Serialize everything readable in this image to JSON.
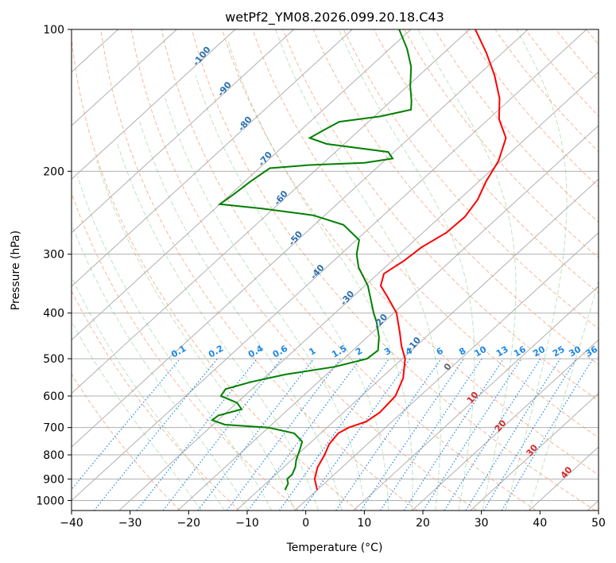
{
  "chart_data": {
    "type": "line",
    "subtype": "skew-T log-P diagram",
    "title": "wetPf2_YM08.2026.099.20.18.C43",
    "xlabel": "Temperature (°C)",
    "ylabel": "Pressure (hPa)",
    "xlim": [
      -40,
      50
    ],
    "ylim": [
      1050,
      100
    ],
    "x_ticks": [
      -40,
      -30,
      -20,
      -10,
      0,
      10,
      20,
      30,
      40,
      50
    ],
    "x_tick_labels": [
      "−40",
      "−30",
      "−20",
      "−10",
      "0",
      "10",
      "20",
      "30",
      "40",
      "50"
    ],
    "y_ticks": [
      100,
      200,
      300,
      400,
      500,
      600,
      700,
      800,
      900,
      1000
    ],
    "y_tick_labels": [
      "100",
      "200",
      "300",
      "400",
      "500",
      "600",
      "700",
      "800",
      "900",
      "1000"
    ],
    "grid": true,
    "series": [
      {
        "name": "Temperature",
        "color": "#ff0000",
        "points": [
          {
            "p": 950,
            "t": 0
          },
          {
            "p": 900,
            "t": -2.5
          },
          {
            "p": 850,
            "t": -4.2
          },
          {
            "p": 800,
            "t": -5.3
          },
          {
            "p": 760,
            "t": -6.5
          },
          {
            "p": 720,
            "t": -7.0
          },
          {
            "p": 700,
            "t": -6.3
          },
          {
            "p": 680,
            "t": -4.4
          },
          {
            "p": 650,
            "t": -3.8
          },
          {
            "p": 600,
            "t": -4.2
          },
          {
            "p": 550,
            "t": -6.2
          },
          {
            "p": 500,
            "t": -9.5
          },
          {
            "p": 470,
            "t": -12.5
          },
          {
            "p": 440,
            "t": -15.3
          },
          {
            "p": 400,
            "t": -19.5
          },
          {
            "p": 370,
            "t": -24.0
          },
          {
            "p": 350,
            "t": -27.3
          },
          {
            "p": 330,
            "t": -29.0
          },
          {
            "p": 310,
            "t": -28.0
          },
          {
            "p": 290,
            "t": -27.5
          },
          {
            "p": 270,
            "t": -26.0
          },
          {
            "p": 250,
            "t": -25.8
          },
          {
            "p": 230,
            "t": -26.8
          },
          {
            "p": 210,
            "t": -28.8
          },
          {
            "p": 190,
            "t": -30.5
          },
          {
            "p": 170,
            "t": -33.5
          },
          {
            "p": 155,
            "t": -38.2
          },
          {
            "p": 140,
            "t": -42.0
          },
          {
            "p": 125,
            "t": -47.2
          },
          {
            "p": 112,
            "t": -52.8
          },
          {
            "p": 100,
            "t": -59.0
          }
        ]
      },
      {
        "name": "Dewpoint",
        "color": "#008000",
        "points": [
          {
            "p": 950,
            "t": -5.5
          },
          {
            "p": 920,
            "t": -6.2
          },
          {
            "p": 900,
            "t": -7.2
          },
          {
            "p": 880,
            "t": -7.2
          },
          {
            "p": 850,
            "t": -8.0
          },
          {
            "p": 820,
            "t": -9.2
          },
          {
            "p": 780,
            "t": -10.5
          },
          {
            "p": 750,
            "t": -11.6
          },
          {
            "p": 720,
            "t": -14.5
          },
          {
            "p": 700,
            "t": -20.0
          },
          {
            "p": 690,
            "t": -28.0
          },
          {
            "p": 675,
            "t": -31.0
          },
          {
            "p": 660,
            "t": -30.8
          },
          {
            "p": 640,
            "t": -28.0
          },
          {
            "p": 620,
            "t": -30.0
          },
          {
            "p": 600,
            "t": -34.0
          },
          {
            "p": 580,
            "t": -34.5
          },
          {
            "p": 560,
            "t": -31.5
          },
          {
            "p": 540,
            "t": -27.0
          },
          {
            "p": 520,
            "t": -20.0
          },
          {
            "p": 500,
            "t": -16.0
          },
          {
            "p": 480,
            "t": -15.7
          },
          {
            "p": 450,
            "t": -18.0
          },
          {
            "p": 420,
            "t": -21.0
          },
          {
            "p": 400,
            "t": -23.4
          },
          {
            "p": 350,
            "t": -29.5
          },
          {
            "p": 320,
            "t": -34.5
          },
          {
            "p": 300,
            "t": -37.3
          },
          {
            "p": 280,
            "t": -39.5
          },
          {
            "p": 260,
            "t": -45.0
          },
          {
            "p": 248,
            "t": -52.0
          },
          {
            "p": 240,
            "t": -62.0
          },
          {
            "p": 235,
            "t": -70.0
          },
          {
            "p": 225,
            "t": -69.5
          },
          {
            "p": 210,
            "t": -69.0
          },
          {
            "p": 197,
            "t": -68.2
          },
          {
            "p": 194,
            "t": -62.0
          },
          {
            "p": 192,
            "t": -53.0
          },
          {
            "p": 188,
            "t": -49.0
          },
          {
            "p": 182,
            "t": -51.0
          },
          {
            "p": 175,
            "t": -63.0
          },
          {
            "p": 170,
            "t": -67.0
          },
          {
            "p": 163,
            "t": -66.0
          },
          {
            "p": 157,
            "t": -65.0
          },
          {
            "p": 153,
            "t": -59.0
          },
          {
            "p": 148,
            "t": -55.0
          },
          {
            "p": 142,
            "t": -56.5
          },
          {
            "p": 132,
            "t": -59.5
          },
          {
            "p": 120,
            "t": -63.0
          },
          {
            "p": 110,
            "t": -67.0
          },
          {
            "p": 100,
            "t": -72.0
          }
        ]
      }
    ],
    "background_lines": {
      "isotherms_step": 10,
      "dry_adiabats_theta_K": [
        250,
        260,
        270,
        280,
        290,
        300,
        310,
        320,
        330,
        340,
        350,
        360,
        370,
        380,
        390,
        400,
        410,
        420,
        430,
        440,
        450,
        460,
        470,
        480
      ],
      "moist_adiabats_start_C": [
        -16,
        -12,
        -8,
        -4,
        0,
        4,
        8,
        12,
        16,
        20,
        24,
        28,
        32,
        36,
        40
      ],
      "mixing_ratios_gkg": [
        0.1,
        0.2,
        0.4,
        0.6,
        1,
        1.5,
        2,
        3,
        4,
        6,
        8,
        10,
        13,
        16,
        20,
        25,
        30,
        36
      ]
    },
    "annotations": {
      "isotherm_labels_blue": [
        {
          "text": "-100",
          "p": 115,
          "t": -100
        },
        {
          "text": "-90",
          "p": 135,
          "t": -90
        },
        {
          "text": "-80",
          "p": 160,
          "t": -80
        },
        {
          "text": "-70",
          "p": 190,
          "t": -70
        },
        {
          "text": "-60",
          "p": 230,
          "t": -60
        },
        {
          "text": "-50",
          "p": 280,
          "t": -50
        },
        {
          "text": "-40",
          "p": 330,
          "t": -40
        },
        {
          "text": "-30",
          "p": 375,
          "t": -30
        },
        {
          "text": "-20",
          "p": 420,
          "t": -20
        },
        {
          "text": "-10",
          "p": 470,
          "t": -10
        }
      ],
      "isotherm_labels_gray": [
        {
          "text": "0",
          "p": 525,
          "t": 0
        }
      ],
      "isotherm_labels_red": [
        {
          "text": "10",
          "p": 610,
          "t": 10
        },
        {
          "text": "20",
          "p": 700,
          "t": 20
        },
        {
          "text": "30",
          "p": 790,
          "t": 30
        },
        {
          "text": "40",
          "p": 880,
          "t": 40
        }
      ],
      "mixing_ratio_labels": [
        "0.1",
        "0.2",
        "0.4",
        "0.6",
        "1",
        "1.5",
        "2",
        "3",
        "4",
        "6",
        "8",
        "10",
        "13",
        "16",
        "20",
        "25",
        "30",
        "36"
      ]
    }
  }
}
